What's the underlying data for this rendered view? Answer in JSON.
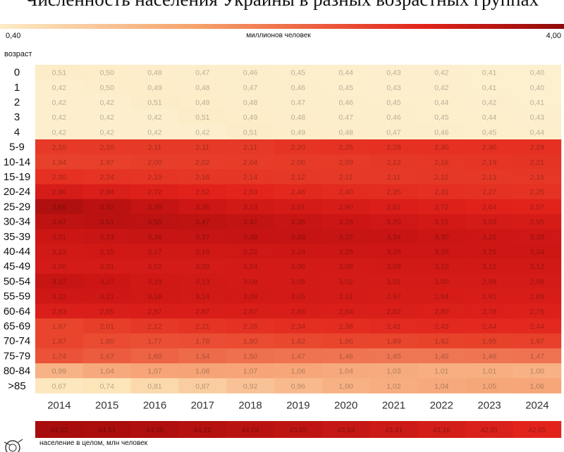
{
  "title": "Численность населения Украины в разных возрастных группах",
  "legend": {
    "min": "0,40",
    "max": "4,00",
    "unit": "миллионов человек"
  },
  "age_header": "возраст",
  "total_label": "население в целом, млн человек",
  "colors": {
    "low": "#fdf0cf",
    "mid": "#f39a72",
    "high": "#e3281d",
    "max": "#9c0d0d"
  },
  "chart_data": {
    "type": "heatmap",
    "title": "Численность населения Украины в разных возрастных группах",
    "value_range": [
      0.4,
      4.0
    ],
    "years": [
      "2014",
      "2015",
      "2016",
      "2017",
      "2018",
      "2019",
      "2020",
      "2021",
      "2022",
      "2023",
      "2024"
    ],
    "rows": [
      {
        "age": "0",
        "values": [
          0.51,
          0.5,
          0.48,
          0.47,
          0.46,
          0.45,
          0.44,
          0.43,
          0.42,
          0.41,
          0.4
        ]
      },
      {
        "age": "1",
        "values": [
          0.42,
          0.5,
          0.49,
          0.48,
          0.47,
          0.46,
          0.45,
          0.43,
          0.42,
          0.41,
          0.4
        ]
      },
      {
        "age": "2",
        "values": [
          0.42,
          0.42,
          0.51,
          0.49,
          0.48,
          0.47,
          0.46,
          0.45,
          0.44,
          0.42,
          0.41
        ]
      },
      {
        "age": "3",
        "values": [
          0.42,
          0.42,
          0.42,
          0.51,
          0.49,
          0.48,
          0.47,
          0.46,
          0.45,
          0.44,
          0.43
        ]
      },
      {
        "age": "4",
        "values": [
          0.42,
          0.42,
          0.42,
          0.42,
          0.51,
          0.49,
          0.48,
          0.47,
          0.46,
          0.45,
          0.44
        ]
      },
      {
        "age": "5-9",
        "values": [
          2.1,
          2.1,
          2.11,
          2.11,
          2.11,
          2.2,
          2.25,
          2.29,
          2.3,
          2.3,
          2.29
        ]
      },
      {
        "age": "10-14",
        "values": [
          1.94,
          1.97,
          2.0,
          2.02,
          2.04,
          2.06,
          2.09,
          2.12,
          2.16,
          2.19,
          2.21
        ]
      },
      {
        "age": "15-19",
        "values": [
          2.3,
          2.24,
          2.19,
          2.16,
          2.14,
          2.12,
          2.11,
          2.11,
          2.12,
          2.13,
          2.15
        ]
      },
      {
        "age": "20-24",
        "values": [
          2.96,
          2.84,
          2.72,
          2.62,
          2.53,
          2.46,
          2.4,
          2.35,
          2.31,
          2.27,
          2.25
        ]
      },
      {
        "age": "25-29",
        "values": [
          3.66,
          3.52,
          3.39,
          3.26,
          3.13,
          3.01,
          2.9,
          2.81,
          2.72,
          2.64,
          2.57
        ]
      },
      {
        "age": "30-34",
        "values": [
          3.47,
          3.51,
          3.5,
          3.47,
          3.42,
          3.36,
          3.28,
          3.2,
          3.12,
          3.03,
          2.95
        ]
      },
      {
        "age": "35-39",
        "values": [
          3.31,
          3.33,
          3.36,
          3.37,
          3.38,
          3.38,
          3.37,
          3.34,
          3.3,
          3.25,
          3.2
        ]
      },
      {
        "age": "40-44",
        "values": [
          3.13,
          3.15,
          3.17,
          3.19,
          3.22,
          3.24,
          3.25,
          3.26,
          3.26,
          3.25,
          3.24
        ]
      },
      {
        "age": "45-49",
        "values": [
          3.0,
          3.01,
          3.02,
          3.03,
          3.04,
          3.06,
          3.08,
          3.09,
          3.1,
          3.12,
          3.12
        ]
      },
      {
        "age": "50-54",
        "values": [
          3.37,
          3.27,
          3.19,
          3.13,
          3.08,
          3.05,
          3.02,
          3.01,
          3.0,
          2.99,
          2.99
        ]
      },
      {
        "age": "55-59",
        "values": [
          3.22,
          3.21,
          3.18,
          3.14,
          3.09,
          3.05,
          3.01,
          2.97,
          2.94,
          2.91,
          2.89
        ]
      },
      {
        "age": "60-64",
        "values": [
          2.83,
          2.85,
          2.87,
          2.87,
          2.87,
          2.86,
          2.84,
          2.82,
          2.8,
          2.78,
          2.75
        ]
      },
      {
        "age": "65-69",
        "values": [
          1.87,
          2.01,
          2.12,
          2.21,
          2.28,
          2.34,
          2.38,
          2.41,
          2.43,
          2.44,
          2.44
        ]
      },
      {
        "age": "70-74",
        "values": [
          1.87,
          1.8,
          1.77,
          1.78,
          1.8,
          1.82,
          1.86,
          1.89,
          1.92,
          1.95,
          1.97
        ]
      },
      {
        "age": "75-79",
        "values": [
          1.74,
          1.67,
          1.6,
          1.54,
          1.5,
          1.47,
          1.46,
          1.45,
          1.45,
          1.46,
          1.47
        ]
      },
      {
        "age": "80-84",
        "values": [
          0.99,
          1.04,
          1.07,
          1.08,
          1.07,
          1.06,
          1.04,
          1.03,
          1.01,
          1.01,
          1.0
        ]
      },
      {
        "age": ">85",
        "values": [
          0.67,
          0.74,
          0.81,
          0.87,
          0.92,
          0.96,
          1.0,
          1.02,
          1.04,
          1.05,
          1.06
        ]
      }
    ],
    "totals": [
      44.62,
      44.51,
      44.38,
      44.22,
      44.04,
      43.85,
      43.63,
      43.41,
      43.16,
      42.91,
      42.65
    ]
  }
}
